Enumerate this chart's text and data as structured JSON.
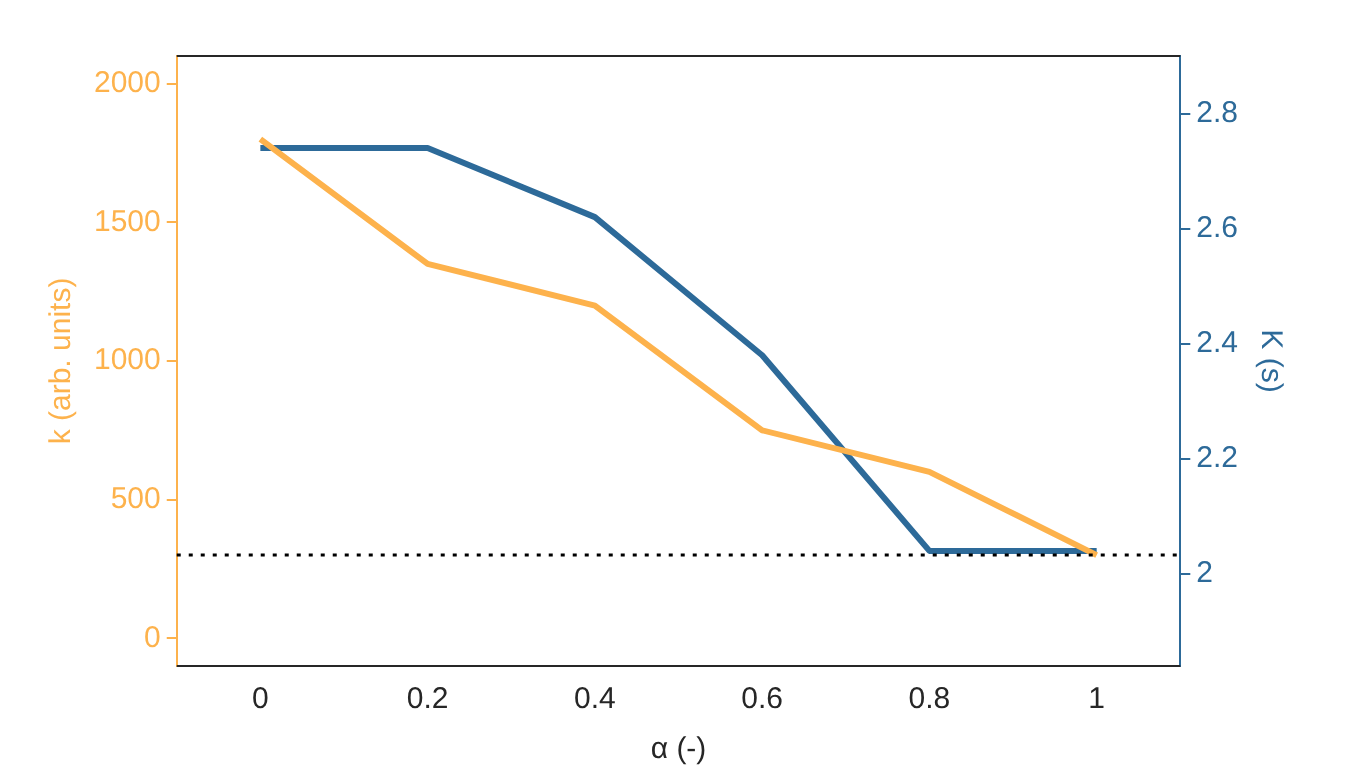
{
  "chart_data": {
    "type": "line",
    "xlabel": "α (-)",
    "ylabel": "k (arb. units)",
    "y2label": "K (s)",
    "x": [
      0,
      0.2,
      0.4,
      0.6,
      0.8,
      1
    ],
    "series": [
      {
        "color": "#fdb24c",
        "values": [
          1800,
          1350,
          1200,
          750,
          600,
          300
        ]
      },
      {
        "color": "#2d6a99",
        "axis": "y2",
        "values": [
          2.74,
          2.74,
          2.62,
          2.38,
          2.04,
          2.04
        ]
      }
    ],
    "xlim": [
      -0.1,
      1.1
    ],
    "xticks": [
      0,
      0.2,
      0.4,
      0.6,
      0.8,
      1
    ],
    "ylim": [
      -100,
      2100
    ],
    "yticks": [
      0,
      500,
      1000,
      1500,
      2000
    ],
    "y2lim": [
      1.84,
      2.9
    ],
    "y2ticks": [
      2,
      2.2,
      2.4,
      2.6,
      2.8
    ],
    "ref_lines": [
      {
        "axis": "y",
        "value": 300,
        "color": "#000000",
        "line_style": "dotted"
      }
    ],
    "grid": false,
    "legend": false
  }
}
